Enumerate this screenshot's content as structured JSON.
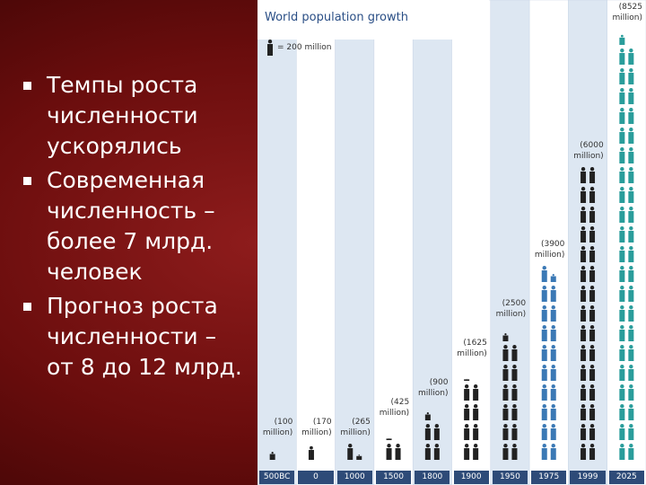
{
  "slide": {
    "bullets": [
      "Темпы роста численности ускорялись",
      "Современная численность – более 7 млрд. человек",
      "Прогноз роста численности – от 8 до 12 млрд."
    ]
  },
  "chart_data": {
    "type": "pictogram",
    "title": "World population growth",
    "unit": {
      "value": 200,
      "label": "= 200 million"
    },
    "categories": [
      "500BC",
      "0",
      "1000",
      "1500",
      "1800",
      "1900",
      "1950",
      "1975",
      "1999",
      "2025"
    ],
    "values": [
      100,
      170,
      265,
      425,
      900,
      1625,
      2500,
      3900,
      6000,
      8525
    ],
    "value_labels": [
      "(100 million)",
      "(170 million)",
      "(265 million)",
      "(425 million)",
      "(900 million)",
      "(1625 million)",
      "(2500 million)",
      "(3900 million)",
      "(6000 million)",
      "(8525 million)"
    ],
    "colors": [
      "#222222",
      "#222222",
      "#222222",
      "#222222",
      "#222222",
      "#222222",
      "#222222",
      "#3b79b5",
      "#222222",
      "#2a9d9b"
    ]
  }
}
